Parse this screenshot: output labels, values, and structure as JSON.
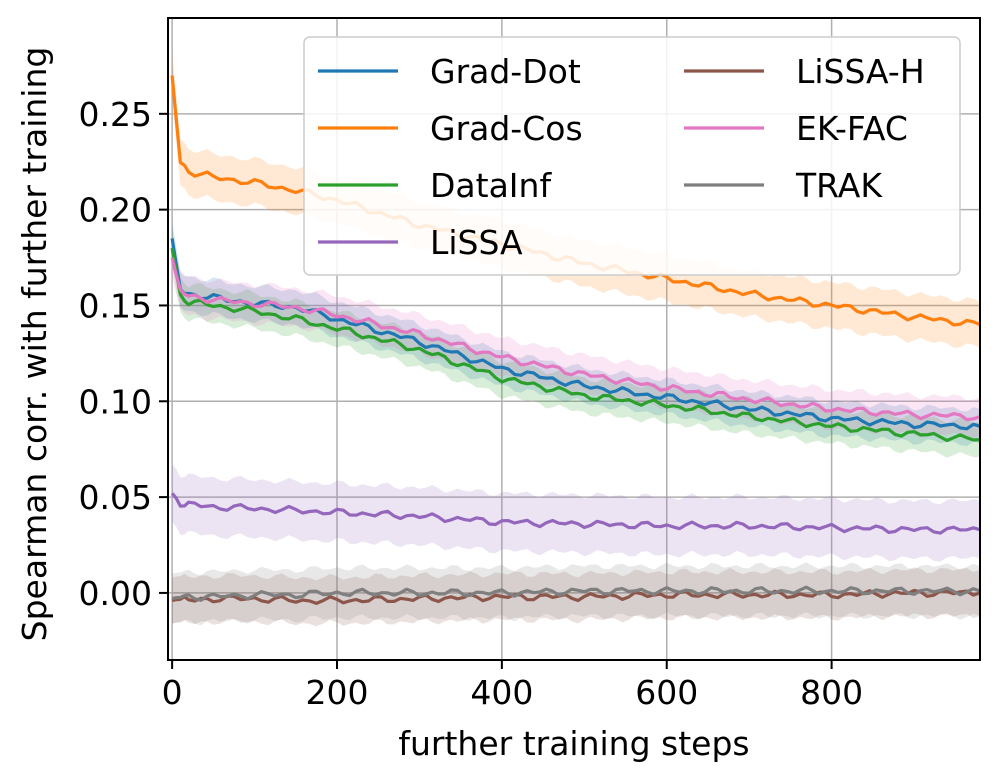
{
  "chart_data": {
    "type": "line",
    "title": "",
    "xlabel": "further training steps",
    "ylabel": "Spearman corr. with further training",
    "xlim": [
      -5,
      980
    ],
    "ylim": [
      -0.035,
      0.3
    ],
    "grid": true,
    "legend_placement": "top-right",
    "x_ticks": [
      {
        "value": 0,
        "label": "0"
      },
      {
        "value": 200,
        "label": "200"
      },
      {
        "value": 400,
        "label": "400"
      },
      {
        "value": 600,
        "label": "600"
      },
      {
        "value": 800,
        "label": "800"
      }
    ],
    "y_ticks": [
      {
        "value": 0.0,
        "label": "0.00"
      },
      {
        "value": 0.05,
        "label": "0.05"
      },
      {
        "value": 0.1,
        "label": "0.10"
      },
      {
        "value": 0.15,
        "label": "0.15"
      },
      {
        "value": 0.2,
        "label": "0.20"
      },
      {
        "value": 0.25,
        "label": "0.25"
      }
    ],
    "x": [
      0,
      10,
      20,
      50,
      100,
      150,
      200,
      300,
      400,
      500,
      600,
      700,
      800,
      900,
      980
    ],
    "series": [
      {
        "name": "Grad-Dot",
        "color": "#1f77b4",
        "values": [
          0.185,
          0.158,
          0.156,
          0.154,
          0.151,
          0.149,
          0.143,
          0.131,
          0.117,
          0.108,
          0.102,
          0.096,
          0.091,
          0.088,
          0.087
        ],
        "band": 0.009
      },
      {
        "name": "Grad-Cos",
        "color": "#ff7f0e",
        "values": [
          0.27,
          0.225,
          0.22,
          0.217,
          0.214,
          0.21,
          0.205,
          0.192,
          0.182,
          0.172,
          0.164,
          0.156,
          0.15,
          0.144,
          0.14
        ],
        "band": 0.012
      },
      {
        "name": "DataInf",
        "color": "#2ca02c",
        "values": [
          0.18,
          0.155,
          0.152,
          0.15,
          0.147,
          0.143,
          0.138,
          0.127,
          0.112,
          0.103,
          0.098,
          0.092,
          0.087,
          0.083,
          0.08
        ],
        "band": 0.009
      },
      {
        "name": "LiSSA",
        "color": "#9467bd",
        "values": [
          0.052,
          0.047,
          0.046,
          0.045,
          0.044,
          0.043,
          0.042,
          0.04,
          0.037,
          0.036,
          0.035,
          0.035,
          0.034,
          0.033,
          0.033
        ],
        "band": 0.015
      },
      {
        "name": "LiSSA-H",
        "color": "#8c564b",
        "values": [
          -0.004,
          -0.003,
          -0.004,
          -0.003,
          -0.003,
          -0.004,
          -0.004,
          -0.003,
          -0.002,
          -0.002,
          -0.001,
          -0.001,
          -0.001,
          0.0,
          0.0
        ],
        "band": 0.012
      },
      {
        "name": "EK-FAC",
        "color": "#e377c2",
        "values": [
          0.175,
          0.157,
          0.155,
          0.153,
          0.151,
          0.149,
          0.145,
          0.135,
          0.123,
          0.114,
          0.107,
          0.101,
          0.096,
          0.093,
          0.092
        ],
        "band": 0.01
      },
      {
        "name": "TRAK",
        "color": "#7f7f7f",
        "values": [
          -0.003,
          -0.002,
          -0.002,
          -0.002,
          -0.001,
          -0.001,
          0.0,
          0.0,
          0.0,
          0.001,
          0.001,
          0.001,
          0.001,
          0.001,
          0.001
        ],
        "band": 0.013
      }
    ],
    "legend_columns": [
      [
        "Grad-Dot",
        "Grad-Cos",
        "DataInf",
        "LiSSA"
      ],
      [
        "LiSSA-H",
        "EK-FAC",
        "TRAK"
      ]
    ]
  }
}
